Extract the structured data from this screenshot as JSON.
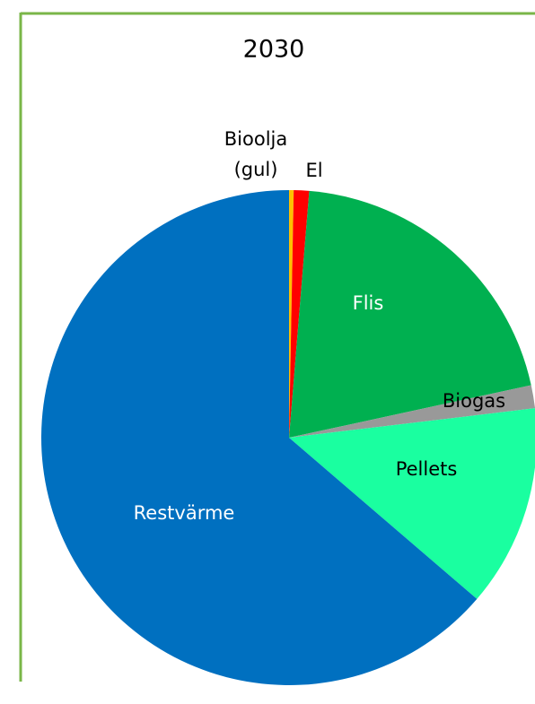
{
  "chart_data": {
    "type": "pie",
    "title": "2030",
    "categories": [
      "Bioolja (gul)",
      "El",
      "Flis",
      "Biogas",
      "Pellets",
      "Restvärme"
    ],
    "values": [
      0.3,
      1,
      20.3,
      1.5,
      13.2,
      63.7
    ],
    "colors": [
      "#ffc000",
      "#ff0000",
      "#00b050",
      "#999999",
      "#1affa0",
      "#0070c0"
    ]
  }
}
